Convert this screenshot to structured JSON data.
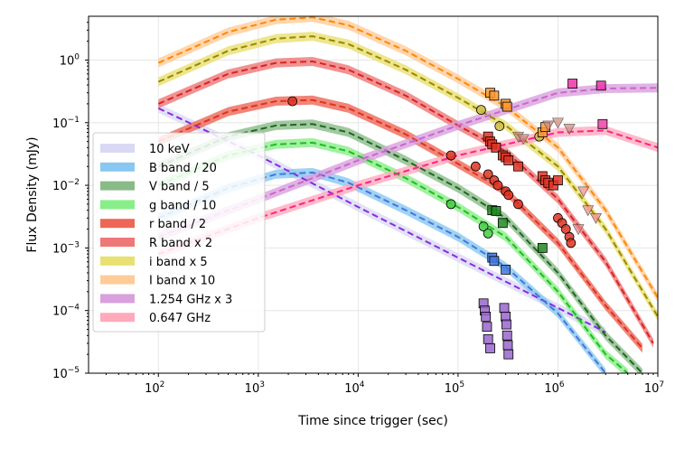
{
  "chart_data": {
    "type": "line",
    "xlabel": "Time since trigger (sec)",
    "ylabel": "Flux Density (mJy)",
    "xscale": "log",
    "yscale": "log",
    "xlim": [
      20,
      10000000
    ],
    "ylim": [
      1e-05,
      5
    ],
    "grid": true,
    "legend_position": "lower-left",
    "x_ticks": [
      {
        "value": 100,
        "base": "10",
        "exp": "2"
      },
      {
        "value": 1000,
        "base": "10",
        "exp": "3"
      },
      {
        "value": 10000,
        "base": "10",
        "exp": "4"
      },
      {
        "value": 100000,
        "base": "10",
        "exp": "5"
      },
      {
        "value": 1000000,
        "base": "10",
        "exp": "6"
      },
      {
        "value": 10000000,
        "base": "10",
        "exp": "7"
      }
    ],
    "y_ticks": [
      {
        "value": 1e-05,
        "base": "10",
        "exp": "−5"
      },
      {
        "value": 0.0001,
        "base": "10",
        "exp": "−4"
      },
      {
        "value": 0.001,
        "base": "10",
        "exp": "−3"
      },
      {
        "value": 0.01,
        "base": "10",
        "exp": "−2"
      },
      {
        "value": 0.1,
        "base": "10",
        "exp": "−1"
      },
      {
        "value": 1,
        "base": "10",
        "exp": "0"
      }
    ],
    "series": [
      {
        "name": "10 keV",
        "band_color": "#d9d9f5",
        "line_color": "#8a2be2",
        "model": [
          [
            100,
            0.17
          ],
          [
            1000,
            0.03
          ],
          [
            10000,
            0.0045
          ],
          [
            100000,
            0.0007
          ],
          [
            1000000,
            0.00011
          ],
          [
            3000000,
            4.5e-05
          ]
        ],
        "points": [
          [
            180000,
            0.00013
          ],
          [
            185000,
            0.0001
          ],
          [
            190000,
            8e-05
          ],
          [
            195000,
            5.5e-05
          ],
          [
            200000,
            3.5e-05
          ],
          [
            210000,
            2.5e-05
          ],
          [
            290000,
            0.00011
          ],
          [
            300000,
            8e-05
          ],
          [
            305000,
            6e-05
          ],
          [
            310000,
            4e-05
          ],
          [
            315000,
            2.8e-05
          ],
          [
            320000,
            2e-05
          ]
        ],
        "marker": "square",
        "marker_color": "#9966cc"
      },
      {
        "name": "B band / 20",
        "band_color": "#88c8f0",
        "line_color": "#4477dd",
        "model": [
          [
            100,
            0.003
          ],
          [
            500,
            0.009
          ],
          [
            1500,
            0.015
          ],
          [
            3500,
            0.016
          ],
          [
            8000,
            0.011
          ],
          [
            30000,
            0.004
          ],
          [
            100000,
            0.0015
          ],
          [
            300000,
            0.0005
          ],
          [
            1000000,
            9e-05
          ],
          [
            3000000,
            1e-05
          ]
        ],
        "points": [
          [
            220000,
            0.0007
          ],
          [
            230000,
            0.00062
          ],
          [
            300000,
            0.00045
          ]
        ],
        "marker": "square",
        "marker_color": "#4477dd"
      },
      {
        "name": "V band / 5",
        "band_color": "#88bb88",
        "line_color": "#226622",
        "model": [
          [
            100,
            0.02
          ],
          [
            500,
            0.06
          ],
          [
            1500,
            0.09
          ],
          [
            3500,
            0.095
          ],
          [
            8000,
            0.07
          ],
          [
            30000,
            0.025
          ],
          [
            100000,
            0.009
          ],
          [
            300000,
            0.003
          ],
          [
            1000000,
            0.0004
          ],
          [
            3000000,
            4e-05
          ],
          [
            7000000,
            1e-05
          ]
        ],
        "points": [
          [
            220000,
            0.004
          ],
          [
            240000,
            0.0039
          ],
          [
            280000,
            0.0025
          ],
          [
            700000,
            0.001
          ]
        ],
        "marker": "square",
        "marker_color": "#228822"
      },
      {
        "name": "g band / 10",
        "band_color": "#88ee88",
        "line_color": "#22bb22",
        "model": [
          [
            100,
            0.01
          ],
          [
            500,
            0.03
          ],
          [
            1500,
            0.045
          ],
          [
            3500,
            0.048
          ],
          [
            8000,
            0.035
          ],
          [
            30000,
            0.013
          ],
          [
            100000,
            0.0045
          ],
          [
            300000,
            0.0015
          ],
          [
            1000000,
            0.0002
          ],
          [
            3000000,
            2e-05
          ],
          [
            5000000,
            1e-05
          ]
        ],
        "points": [
          [
            85000,
            0.005
          ],
          [
            180000,
            0.0022
          ],
          [
            200000,
            0.0017
          ]
        ],
        "marker": "circle",
        "marker_color": "#44cc44"
      },
      {
        "name": "r band / 2",
        "band_color": "#ee6655",
        "line_color": "#dd3322",
        "model": [
          [
            100,
            0.05
          ],
          [
            500,
            0.15
          ],
          [
            1500,
            0.22
          ],
          [
            3500,
            0.23
          ],
          [
            8000,
            0.17
          ],
          [
            30000,
            0.065
          ],
          [
            100000,
            0.022
          ],
          [
            300000,
            0.008
          ],
          [
            1000000,
            0.0012
          ],
          [
            3000000,
            0.00012
          ],
          [
            7000000,
            2.5e-05
          ]
        ],
        "points": [
          [
            2200,
            0.22
          ],
          [
            85000,
            0.03
          ],
          [
            150000,
            0.02
          ],
          [
            200000,
            0.015
          ],
          [
            230000,
            0.012
          ],
          [
            250000,
            0.01
          ],
          [
            300000,
            0.008
          ],
          [
            320000,
            0.007
          ],
          [
            400000,
            0.005
          ],
          [
            1000000,
            0.003
          ],
          [
            1100000,
            0.0025
          ],
          [
            1200000,
            0.002
          ],
          [
            1300000,
            0.0015
          ],
          [
            1350000,
            0.0012
          ]
        ],
        "marker": "circle",
        "marker_color": "#dd3322"
      },
      {
        "name": "R band x 2",
        "band_color": "#ee7777",
        "line_color": "#dd2222",
        "model": [
          [
            100,
            0.2
          ],
          [
            500,
            0.6
          ],
          [
            1500,
            0.9
          ],
          [
            3500,
            0.95
          ],
          [
            8000,
            0.7
          ],
          [
            30000,
            0.27
          ],
          [
            100000,
            0.09
          ],
          [
            300000,
            0.035
          ],
          [
            1000000,
            0.006
          ],
          [
            3000000,
            0.0006
          ],
          [
            9000000,
            3e-05
          ]
        ],
        "points": [
          [
            200000,
            0.06
          ],
          [
            210000,
            0.05
          ],
          [
            220000,
            0.045
          ],
          [
            240000,
            0.04
          ],
          [
            280000,
            0.03
          ],
          [
            300000,
            0.028
          ],
          [
            320000,
            0.025
          ],
          [
            400000,
            0.02
          ],
          [
            700000,
            0.014
          ],
          [
            750000,
            0.012
          ],
          [
            800000,
            0.011
          ],
          [
            900000,
            0.01
          ],
          [
            1000000,
            0.012
          ]
        ],
        "marker": "square",
        "marker_color": "#dd3322"
      },
      {
        "name": "i band x 5",
        "band_color": "#e8e070",
        "line_color": "#998800",
        "model": [
          [
            100,
            0.45
          ],
          [
            500,
            1.4
          ],
          [
            1500,
            2.2
          ],
          [
            3500,
            2.4
          ],
          [
            8000,
            1.8
          ],
          [
            30000,
            0.7
          ],
          [
            100000,
            0.25
          ],
          [
            300000,
            0.09
          ],
          [
            1000000,
            0.02
          ],
          [
            3000000,
            0.002
          ],
          [
            10000000,
            8e-05
          ]
        ],
        "points": [
          [
            170000,
            0.16
          ],
          [
            260000,
            0.088
          ],
          [
            650000,
            0.06
          ]
        ],
        "marker": "circle",
        "marker_color": "#ccbb44"
      },
      {
        "name": "I band x 10",
        "band_color": "#ffcc99",
        "line_color": "#ff8800",
        "model": [
          [
            100,
            0.9
          ],
          [
            500,
            2.8
          ],
          [
            1500,
            4.4
          ],
          [
            3500,
            4.8
          ],
          [
            8000,
            3.6
          ],
          [
            30000,
            1.4
          ],
          [
            100000,
            0.5
          ],
          [
            300000,
            0.18
          ],
          [
            1000000,
            0.04
          ],
          [
            3000000,
            0.004
          ],
          [
            10000000,
            0.00016
          ]
        ],
        "points": [
          [
            210000,
            0.3
          ],
          [
            230000,
            0.27
          ],
          [
            300000,
            0.2
          ],
          [
            310000,
            0.18
          ],
          [
            700000,
            0.07
          ],
          [
            750000,
            0.085
          ]
        ],
        "marker": "square",
        "marker_color": "#ff9933"
      },
      {
        "name": "1.254 GHz x 3",
        "band_color": "#d8a0dd",
        "line_color": "#cc66cc",
        "model": [
          [
            100,
            0.0015
          ],
          [
            1000,
            0.006
          ],
          [
            10000,
            0.025
          ],
          [
            100000,
            0.09
          ],
          [
            1000000,
            0.3
          ],
          [
            3000000,
            0.35
          ],
          [
            10000000,
            0.36
          ]
        ],
        "points": [
          [
            1400000,
            0.42
          ],
          [
            2700000,
            0.39
          ]
        ],
        "marker": "square",
        "marker_color": "#ee33aa"
      },
      {
        "name": "0.647 GHz",
        "band_color": "#ffaabb",
        "line_color": "#ff2288",
        "model": [
          [
            100,
            0.0008
          ],
          [
            1000,
            0.003
          ],
          [
            10000,
            0.01
          ],
          [
            100000,
            0.03
          ],
          [
            1000000,
            0.07
          ],
          [
            3000000,
            0.075
          ],
          [
            10000000,
            0.04
          ]
        ],
        "points": [
          [
            2800000,
            0.095
          ]
        ],
        "marker": "square",
        "marker_color": "#ee44aa"
      }
    ],
    "upper_limits": [
      {
        "color": "#cc8877",
        "points": [
          [
            400000,
            0.06
          ],
          [
            450000,
            0.055
          ],
          [
            800000,
            0.09
          ],
          [
            1000000,
            0.1
          ],
          [
            1300000,
            0.08
          ]
        ]
      },
      {
        "color": "#ee8888",
        "points": [
          [
            1800000,
            0.008
          ],
          [
            2000000,
            0.004
          ],
          [
            2400000,
            0.003
          ],
          [
            1600000,
            0.002
          ]
        ]
      }
    ]
  }
}
